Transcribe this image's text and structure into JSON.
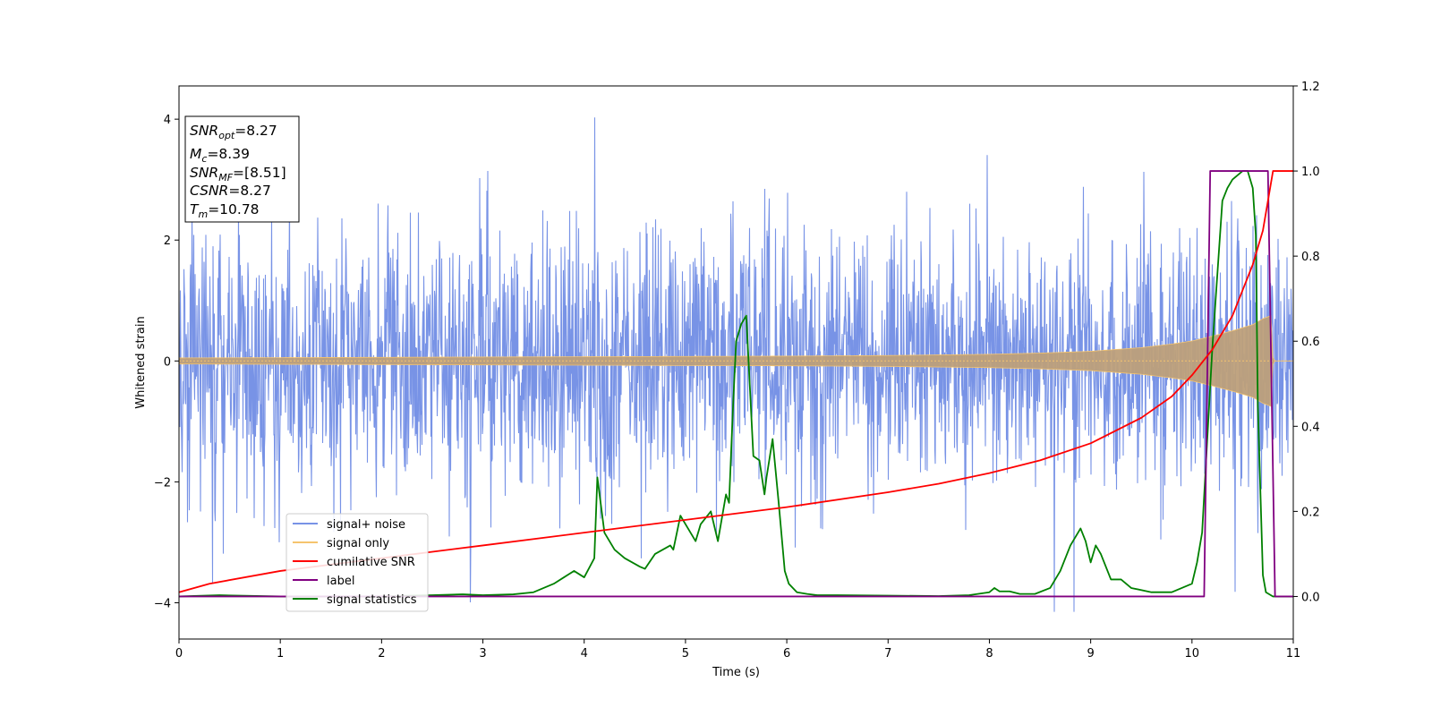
{
  "chart_data": {
    "type": "line",
    "xlabel": "Time (s)",
    "ylabel": "Whitened strain",
    "xlim": [
      0,
      11
    ],
    "ylim_left": [
      -4.6,
      4.55
    ],
    "ylim_right": [
      -0.1,
      1.2
    ],
    "xticks": [
      "0",
      "1",
      "2",
      "3",
      "4",
      "5",
      "6",
      "7",
      "8",
      "9",
      "10",
      "11"
    ],
    "yticks_left": [
      "−4",
      "−2",
      "0",
      "2",
      "4"
    ],
    "yticks_right": [
      "0.0",
      "0.2",
      "0.4",
      "0.6",
      "0.8",
      "1.0",
      "1.2"
    ],
    "info_box": {
      "snr_opt": "=8.27",
      "mc": "=8.39",
      "snr_mf": "=[8.51]",
      "csnr": "=8.27",
      "tm": "=10.78"
    },
    "legend": {
      "signal_noise": "signal+ noise",
      "signal_only": "signal only",
      "cumulative_snr": "cumilative SNR",
      "label": "label",
      "signal_statistics": "signal statistics"
    },
    "colors": {
      "signal_noise": "#7893e6",
      "signal_only": "#f5c46e",
      "signal_overlap": "#bd9f7a",
      "cumulative_snr": "#ff0000",
      "label": "#800080",
      "signal_statistics": "#008000"
    },
    "series": [
      {
        "name": "signal+ noise",
        "axis": "left",
        "description_values": {
          "typical_amplitude": 2.3,
          "peak_max": 4.1,
          "peak_min": -4.15
        }
      },
      {
        "name": "signal only",
        "axis": "left",
        "envelope": {
          "t": [
            0,
            2,
            4,
            6,
            7,
            8,
            8.5,
            9,
            9.5,
            9.8,
            10,
            10.2,
            10.4,
            10.6,
            10.7,
            10.78,
            10.8,
            11
          ],
          "amp": [
            0.05,
            0.06,
            0.07,
            0.08,
            0.09,
            0.11,
            0.13,
            0.16,
            0.22,
            0.28,
            0.33,
            0.41,
            0.5,
            0.6,
            0.7,
            0.75,
            0,
            0
          ]
        }
      },
      {
        "name": "cumilative SNR",
        "axis": "right",
        "x": [
          0,
          0.3,
          1,
          2,
          3,
          4,
          5,
          6,
          7,
          7.5,
          8,
          8.5,
          9,
          9.5,
          9.8,
          10,
          10.2,
          10.4,
          10.5,
          10.6,
          10.7,
          10.75,
          10.8,
          11
        ],
        "values": [
          0.01,
          0.03,
          0.06,
          0.09,
          0.12,
          0.15,
          0.18,
          0.21,
          0.245,
          0.265,
          0.29,
          0.32,
          0.36,
          0.42,
          0.47,
          0.52,
          0.58,
          0.66,
          0.72,
          0.78,
          0.86,
          0.93,
          1.0,
          1.0
        ]
      },
      {
        "name": "label",
        "axis": "right",
        "x": [
          0,
          10.12,
          10.18,
          10.75,
          10.82,
          11
        ],
        "values": [
          0,
          0,
          1,
          1,
          0,
          0
        ]
      },
      {
        "name": "signal statistics",
        "axis": "right",
        "x": [
          0,
          0.4,
          1,
          2,
          2.5,
          2.8,
          3.0,
          3.3,
          3.5,
          3.7,
          3.8,
          3.9,
          4.0,
          4.1,
          4.13,
          4.2,
          4.3,
          4.4,
          4.55,
          4.6,
          4.7,
          4.85,
          4.88,
          4.95,
          5.1,
          5.15,
          5.25,
          5.32,
          5.4,
          5.43,
          5.47,
          5.5,
          5.55,
          5.6,
          5.67,
          5.73,
          5.78,
          5.8,
          5.86,
          5.92,
          5.98,
          6.02,
          6.1,
          6.2,
          6.3,
          6.5,
          7,
          7.5,
          7.8,
          8.0,
          8.05,
          8.1,
          8.2,
          8.3,
          8.45,
          8.6,
          8.7,
          8.8,
          8.9,
          8.95,
          9.0,
          9.05,
          9.1,
          9.2,
          9.3,
          9.4,
          9.6,
          9.8,
          10.0,
          10.05,
          10.1,
          10.2,
          10.3,
          10.35,
          10.4,
          10.45,
          10.5,
          10.55,
          10.6,
          10.63,
          10.65,
          10.7,
          10.73,
          10.8,
          10.9,
          11
        ],
        "values": [
          0,
          0.003,
          0,
          0,
          0.003,
          0.005,
          0.003,
          0.005,
          0.01,
          0.03,
          0.045,
          0.06,
          0.045,
          0.09,
          0.28,
          0.15,
          0.11,
          0.09,
          0.07,
          0.065,
          0.1,
          0.12,
          0.11,
          0.19,
          0.13,
          0.17,
          0.2,
          0.13,
          0.24,
          0.22,
          0.45,
          0.6,
          0.64,
          0.66,
          0.33,
          0.32,
          0.24,
          0.28,
          0.37,
          0.22,
          0.06,
          0.03,
          0.01,
          0.006,
          0.003,
          0.003,
          0.002,
          0.001,
          0.003,
          0.01,
          0.02,
          0.012,
          0.012,
          0.006,
          0.006,
          0.02,
          0.06,
          0.12,
          0.16,
          0.13,
          0.08,
          0.12,
          0.1,
          0.04,
          0.04,
          0.02,
          0.01,
          0.01,
          0.03,
          0.08,
          0.15,
          0.58,
          0.93,
          0.96,
          0.98,
          0.99,
          1.0,
          1.0,
          0.96,
          0.85,
          0.45,
          0.05,
          0.01,
          0.0,
          0.0,
          0.0
        ]
      }
    ]
  }
}
